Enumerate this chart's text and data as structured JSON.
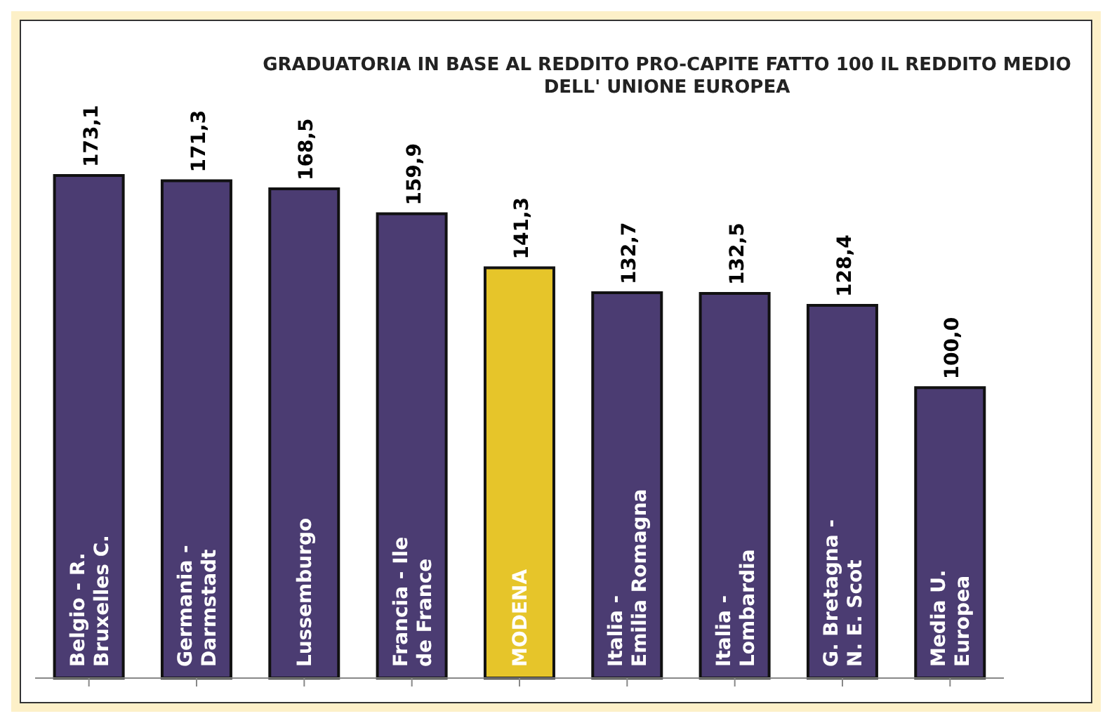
{
  "chart_data": {
    "type": "bar",
    "title": "GRADUATORIA IN BASE AL REDDITO PRO-CAPITE FATTO 100 IL REDDITO MEDIO DELL' UNIONE EUROPEA",
    "categories": [
      "Belgio - R. Bruxelles C.",
      "Germania - Darmstadt",
      "Lussemburgo",
      "Francia - Ile de France",
      "MODENA",
      "Italia - Emilia Romagna",
      "Italia - Lombardia",
      "G. Bretagna - N. E. Scot",
      "Media U. Europea"
    ],
    "values": [
      173.1,
      171.3,
      168.5,
      159.9,
      141.3,
      132.7,
      132.5,
      128.4,
      100.0
    ],
    "value_labels": [
      "173,1",
      "171,3",
      "168,5",
      "159,9",
      "141,3",
      "132,7",
      "132,5",
      "128,4",
      "100,0"
    ],
    "colors": [
      "#4b3c72",
      "#4b3c72",
      "#4b3c72",
      "#4b3c72",
      "#e6c52a",
      "#4b3c72",
      "#4b3c72",
      "#4b3c72",
      "#4b3c72"
    ]
  }
}
